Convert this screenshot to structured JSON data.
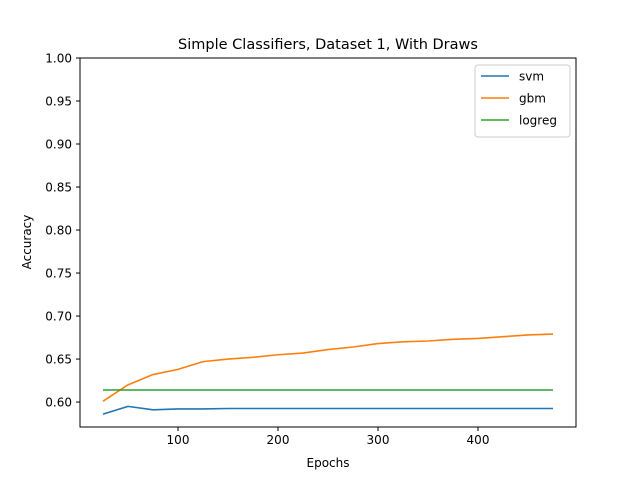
{
  "chart_data": {
    "type": "line",
    "title": "Simple Classifiers, Dataset 1, With Draws",
    "xlabel": "Epochs",
    "ylabel": "Accuracy",
    "xlim": [
      2,
      498
    ],
    "ylim": [
      0.571,
      1.0
    ],
    "xticks": [
      100,
      200,
      300,
      400
    ],
    "xtick_labels": [
      "100",
      "200",
      "300",
      "400"
    ],
    "yticks": [
      0.6,
      0.65,
      0.7,
      0.75,
      0.8,
      0.85,
      0.9,
      0.95,
      1.0
    ],
    "ytick_labels": [
      "0.60",
      "0.65",
      "0.70",
      "0.75",
      "0.80",
      "0.85",
      "0.90",
      "0.95",
      "1.00"
    ],
    "grid": false,
    "legend_position": "top-right",
    "x": [
      25,
      50,
      75,
      100,
      125,
      150,
      175,
      200,
      225,
      250,
      275,
      300,
      325,
      350,
      375,
      400,
      425,
      450,
      475
    ],
    "series": [
      {
        "name": "svm",
        "color": "#1f77b4",
        "values": [
          0.586,
          0.595,
          0.591,
          0.592,
          0.592,
          0.5925,
          0.5925,
          0.5925,
          0.5925,
          0.5925,
          0.5925,
          0.5925,
          0.5925,
          0.5925,
          0.5925,
          0.5925,
          0.5925,
          0.5925,
          0.5925
        ]
      },
      {
        "name": "gbm",
        "color": "#ff7f0e",
        "values": [
          0.601,
          0.62,
          0.632,
          0.638,
          0.647,
          0.65,
          0.652,
          0.655,
          0.657,
          0.661,
          0.664,
          0.668,
          0.67,
          0.671,
          0.673,
          0.674,
          0.676,
          0.678,
          0.679
        ]
      },
      {
        "name": "logreg",
        "color": "#2ca02c",
        "values": [
          0.614,
          0.614,
          0.614,
          0.614,
          0.614,
          0.614,
          0.614,
          0.614,
          0.614,
          0.614,
          0.614,
          0.614,
          0.614,
          0.614,
          0.614,
          0.614,
          0.614,
          0.614,
          0.614
        ]
      }
    ]
  }
}
